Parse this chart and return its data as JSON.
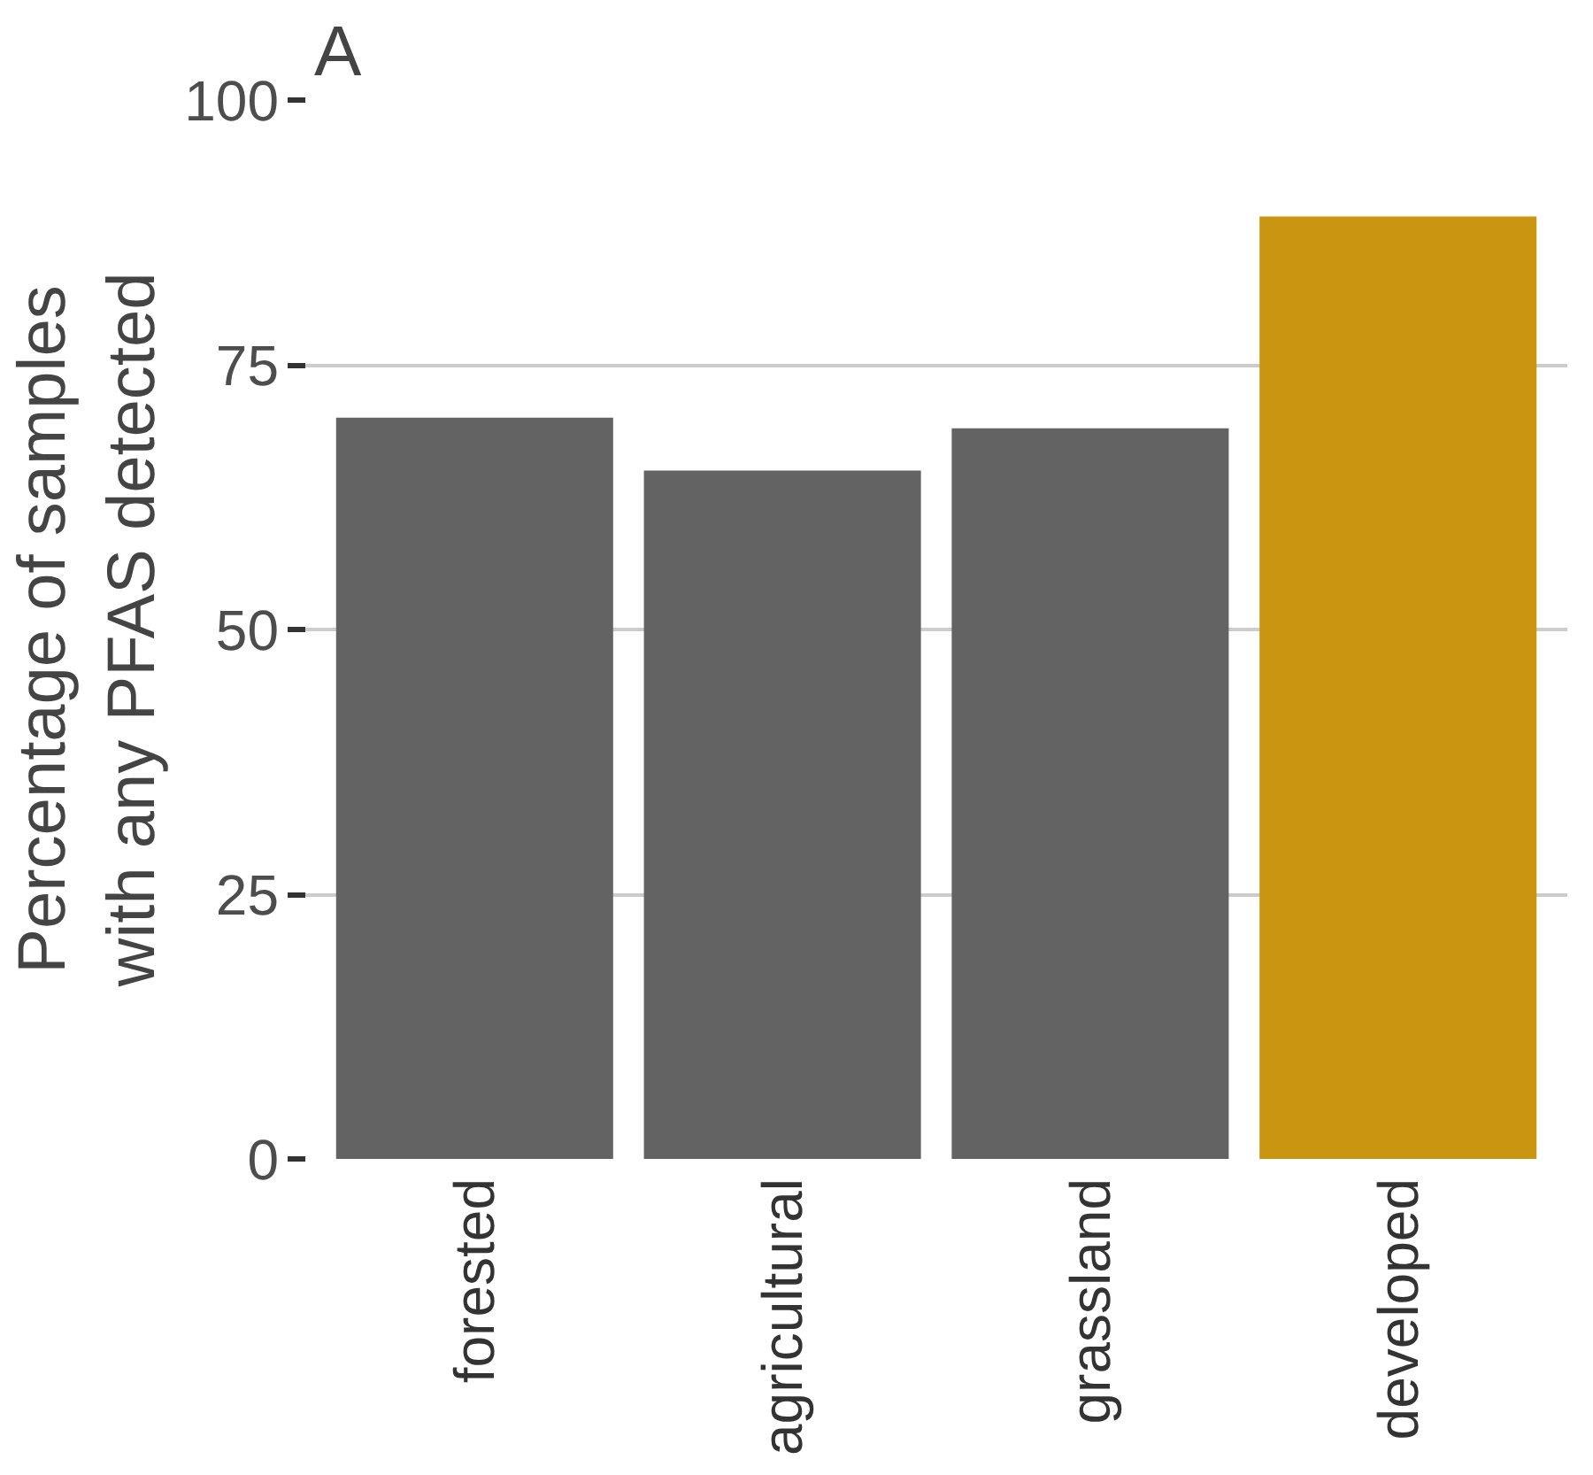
{
  "chart_data": {
    "type": "bar",
    "title": "A",
    "ylabel": "Percentage of samples\nwith any PFAS detected",
    "categories": [
      "forested",
      "agricultural",
      "grassland",
      "developed"
    ],
    "values": [
      70,
      65,
      69,
      89
    ],
    "colors": [
      "#636363",
      "#636363",
      "#636363",
      "#ca9510"
    ],
    "ylim": [
      0,
      100
    ],
    "yticks": [
      0,
      25,
      50,
      75,
      100
    ],
    "grid": "y"
  }
}
